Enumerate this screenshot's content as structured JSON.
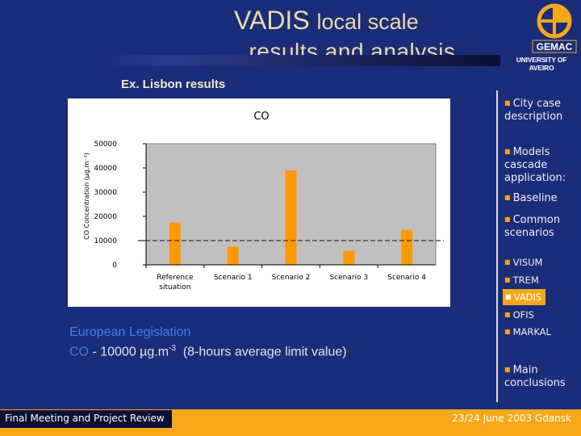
{
  "slide": {
    "title_word1": "VADIS",
    "title_word2": "local scale",
    "title_line2": "..results and analysis",
    "example_label": "Ex. Lisbon results"
  },
  "logo": {
    "brand": "GEMAC",
    "university": "UNIVERSITY OF AVEIRO"
  },
  "chart_data": {
    "type": "bar",
    "title": "CO",
    "ylabel": "CO Concentration (µg.m⁻³)",
    "xlabel": "",
    "ylim": [
      0,
      50000
    ],
    "yticks": [
      0,
      10000,
      20000,
      30000,
      40000,
      50000
    ],
    "ytick_labels": [
      "0",
      "10000",
      "20000",
      "30000",
      "40000",
      "50000"
    ],
    "categories": [
      "Reference situation",
      "Scenario 1",
      "Scenario 2",
      "Scenario 3",
      "Scenario 4"
    ],
    "category_lines": [
      [
        "Reference",
        "situation"
      ],
      [
        "Scenario 1"
      ],
      [
        "Scenario 2"
      ],
      [
        "Scenario 3"
      ],
      [
        "Scenario 4"
      ]
    ],
    "series": [
      {
        "values": [
          17500,
          7500,
          39000,
          5800,
          14500
        ]
      }
    ],
    "limit_line_value": 10000,
    "colors": {
      "bar": "#ff9900",
      "plot_bg": "#c0c0c0",
      "frame": "#808080",
      "limit_line": "#333333"
    },
    "grid": false,
    "legend": "none"
  },
  "sidebar": {
    "items": [
      {
        "label": "City case description",
        "lines": [
          "City case",
          "description"
        ]
      },
      {
        "label": "Models cascade application:",
        "lines": [
          "Models",
          "cascade",
          "application:"
        ]
      },
      {
        "label": "Baseline",
        "lines": [
          "Baseline"
        ]
      },
      {
        "label": "Common scenarios",
        "lines": [
          "Common",
          "scenarios"
        ]
      },
      {
        "label": "VISUM",
        "lines": [
          "VISUM"
        ]
      },
      {
        "label": "TREM",
        "lines": [
          "TREM"
        ]
      },
      {
        "label": "VADIS",
        "lines": [
          "VADIS"
        ]
      },
      {
        "label": "OFIS",
        "lines": [
          "OFIS"
        ]
      },
      {
        "label": "MARKAL",
        "lines": [
          "MARKAL"
        ]
      },
      {
        "label": "Main conclusions",
        "lines": [
          "Main",
          "conclusions"
        ]
      }
    ],
    "active": "VADIS",
    "bullet": "■"
  },
  "legislation": {
    "heading": "European Legislation",
    "pollutant": "CO",
    "value_text": " - 10000 µg.m",
    "exponent": "-3",
    "note": "  (8-hours average limit value)"
  },
  "footer": {
    "left": "Final Meeting and Project Review",
    "right": "23/24 June 2003 Gdansk"
  },
  "colors": {
    "background": "#1a2d7a",
    "accent": "#f5a81a",
    "title": "#ecd9a8",
    "legislation_blue": "#3f7ff0"
  }
}
